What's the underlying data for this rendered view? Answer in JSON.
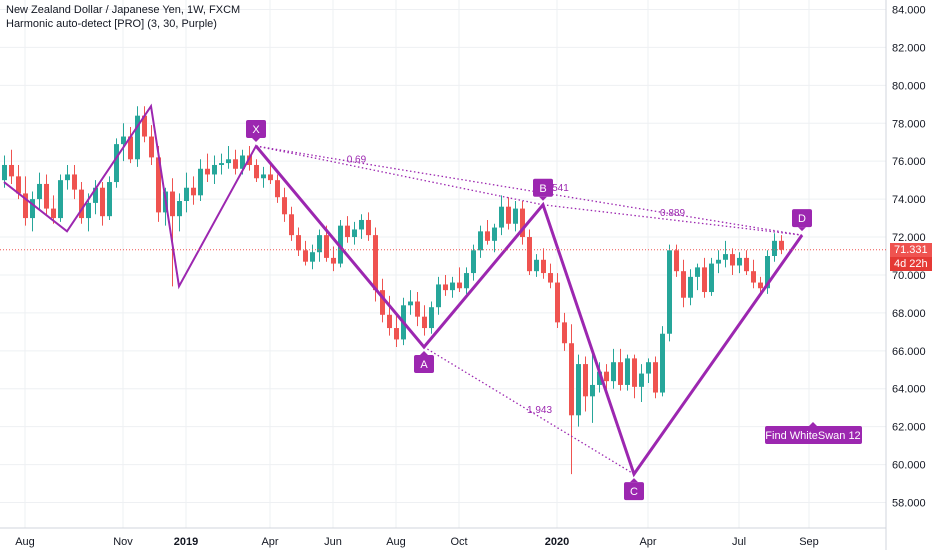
{
  "header": {
    "title": "New Zealand Dollar / Japanese Yen, 1W, FXCM",
    "indicator": "Harmonic auto-detect [PRO] (3, 30, Purple)"
  },
  "price_label": {
    "value": "71.331",
    "countdown": "4d 22h",
    "color": "#ef5350",
    "countdown_color": "#e53935"
  },
  "colors": {
    "up": "#26a69a",
    "down": "#ef5350",
    "pattern": "#9c27b0",
    "grid": "#eef0f3",
    "axis_text": "#131722"
  },
  "banner": {
    "label": "Find WhiteSwan 12"
  },
  "chart_data": {
    "type": "candlestick",
    "x_ticks": [
      "Aug",
      "Nov",
      "2019",
      "Apr",
      "Jun",
      "Aug",
      "Oct",
      "2020",
      "Apr",
      "Jul",
      "Sep"
    ],
    "y_ticks": [
      "84.000",
      "82.000",
      "80.000",
      "78.000",
      "76.000",
      "74.000",
      "72.000",
      "70.000",
      "68.000",
      "66.000",
      "64.000",
      "62.000",
      "60.000",
      "58.000"
    ],
    "ylim": [
      57.5,
      84.5
    ],
    "current_price": 71.331,
    "pattern_points": [
      {
        "label": "X",
        "price": 76.8
      },
      {
        "label": "A",
        "price": 66.2
      },
      {
        "label": "B",
        "price": 73.7
      },
      {
        "label": "C",
        "price": 59.5
      },
      {
        "label": "D",
        "price": 72.1
      }
    ],
    "ratios": [
      "0.69",
      "0.541",
      "0.889",
      "1.943"
    ],
    "zigzag": [
      74.9,
      72.3,
      78.9,
      69.4,
      76.8,
      66.2,
      73.7,
      59.5,
      72.1
    ],
    "ohlc": [
      [
        75.0,
        76.3,
        74.6,
        75.8
      ],
      [
        75.8,
        76.6,
        74.8,
        75.2
      ],
      [
        75.2,
        75.8,
        74.0,
        74.3
      ],
      [
        74.3,
        75.2,
        72.6,
        73.0
      ],
      [
        73.0,
        74.4,
        72.3,
        74.0
      ],
      [
        74.0,
        75.4,
        73.4,
        74.8
      ],
      [
        74.8,
        75.3,
        73.2,
        73.5
      ],
      [
        73.5,
        74.2,
        72.7,
        73.0
      ],
      [
        73.0,
        75.3,
        72.8,
        75.0
      ],
      [
        75.0,
        75.8,
        74.5,
        75.3
      ],
      [
        75.3,
        75.8,
        74.0,
        74.5
      ],
      [
        74.5,
        74.9,
        72.7,
        73.0
      ],
      [
        73.0,
        74.3,
        72.3,
        73.8
      ],
      [
        73.8,
        75.0,
        73.2,
        74.6
      ],
      [
        74.6,
        74.9,
        72.6,
        73.1
      ],
      [
        73.1,
        75.2,
        72.9,
        74.9
      ],
      [
        74.9,
        77.2,
        74.6,
        76.9
      ],
      [
        76.9,
        78.0,
        76.0,
        77.3
      ],
      [
        77.3,
        77.8,
        75.9,
        76.1
      ],
      [
        76.1,
        78.9,
        75.7,
        78.4
      ],
      [
        78.4,
        78.9,
        77.0,
        77.3
      ],
      [
        77.3,
        77.9,
        75.8,
        76.2
      ],
      [
        76.2,
        76.8,
        72.8,
        73.3
      ],
      [
        73.3,
        74.6,
        72.6,
        74.4
      ],
      [
        74.4,
        75.1,
        69.4,
        73.1
      ],
      [
        73.1,
        74.3,
        72.3,
        73.9
      ],
      [
        73.9,
        75.4,
        73.3,
        74.6
      ],
      [
        74.6,
        75.2,
        73.7,
        74.2
      ],
      [
        74.2,
        76.1,
        73.9,
        75.6
      ],
      [
        75.6,
        76.4,
        74.9,
        75.3
      ],
      [
        75.3,
        76.3,
        74.8,
        75.8
      ],
      [
        75.8,
        76.4,
        75.3,
        75.9
      ],
      [
        75.9,
        76.8,
        75.6,
        76.1
      ],
      [
        76.1,
        76.6,
        75.3,
        75.6
      ],
      [
        75.6,
        76.6,
        75.3,
        76.3
      ],
      [
        76.3,
        76.8,
        75.5,
        75.8
      ],
      [
        75.8,
        76.1,
        74.9,
        75.1
      ],
      [
        75.1,
        75.7,
        74.6,
        75.3
      ],
      [
        75.3,
        75.9,
        74.8,
        75.0
      ],
      [
        75.0,
        75.3,
        73.8,
        74.1
      ],
      [
        74.1,
        74.6,
        72.8,
        73.2
      ],
      [
        73.2,
        73.6,
        71.8,
        72.1
      ],
      [
        72.1,
        72.5,
        71.0,
        71.3
      ],
      [
        71.3,
        71.8,
        70.5,
        70.7
      ],
      [
        70.7,
        71.6,
        70.3,
        71.2
      ],
      [
        71.2,
        72.4,
        70.7,
        72.1
      ],
      [
        72.1,
        72.6,
        70.7,
        70.9
      ],
      [
        70.9,
        71.5,
        70.2,
        70.6
      ],
      [
        70.6,
        72.9,
        70.4,
        72.6
      ],
      [
        72.6,
        73.1,
        71.7,
        72.0
      ],
      [
        72.0,
        72.8,
        71.6,
        72.4
      ],
      [
        72.4,
        73.2,
        71.9,
        72.9
      ],
      [
        72.9,
        73.3,
        71.8,
        72.1
      ],
      [
        72.1,
        72.5,
        68.6,
        69.2
      ],
      [
        69.2,
        69.8,
        67.5,
        67.9
      ],
      [
        67.9,
        68.9,
        66.8,
        67.2
      ],
      [
        67.2,
        67.9,
        66.2,
        66.6
      ],
      [
        66.6,
        68.8,
        66.3,
        68.4
      ],
      [
        68.4,
        69.2,
        67.9,
        68.6
      ],
      [
        68.6,
        69.1,
        67.3,
        67.8
      ],
      [
        67.8,
        68.4,
        66.8,
        67.2
      ],
      [
        67.2,
        68.6,
        66.9,
        68.3
      ],
      [
        68.3,
        69.9,
        67.9,
        69.5
      ],
      [
        69.5,
        70.0,
        68.9,
        69.2
      ],
      [
        69.2,
        69.9,
        68.8,
        69.6
      ],
      [
        69.6,
        70.4,
        69.1,
        69.3
      ],
      [
        69.3,
        70.4,
        69.0,
        70.1
      ],
      [
        70.1,
        71.6,
        69.7,
        71.3
      ],
      [
        71.3,
        72.6,
        70.9,
        72.3
      ],
      [
        72.3,
        72.9,
        71.6,
        71.8
      ],
      [
        71.8,
        72.7,
        71.2,
        72.5
      ],
      [
        72.5,
        74.2,
        72.1,
        73.6
      ],
      [
        73.6,
        74.1,
        72.4,
        72.7
      ],
      [
        72.7,
        73.9,
        72.3,
        73.5
      ],
      [
        73.5,
        73.9,
        71.6,
        72.0
      ],
      [
        72.0,
        72.4,
        70.0,
        70.2
      ],
      [
        70.2,
        71.1,
        69.9,
        70.8
      ],
      [
        70.8,
        71.4,
        69.8,
        70.1
      ],
      [
        70.1,
        70.6,
        69.3,
        69.6
      ],
      [
        69.6,
        70.1,
        67.2,
        67.5
      ],
      [
        67.5,
        68.0,
        66.0,
        66.4
      ],
      [
        66.4,
        67.4,
        59.5,
        62.6
      ],
      [
        62.6,
        65.8,
        62.0,
        65.3
      ],
      [
        65.3,
        65.7,
        62.8,
        63.6
      ],
      [
        63.6,
        65.9,
        62.2,
        64.2
      ],
      [
        64.2,
        65.4,
        63.8,
        64.9
      ],
      [
        64.9,
        65.3,
        63.9,
        64.4
      ],
      [
        64.4,
        66.1,
        64.0,
        65.4
      ],
      [
        65.4,
        66.1,
        63.9,
        64.2
      ],
      [
        64.2,
        65.8,
        63.9,
        65.6
      ],
      [
        65.6,
        65.8,
        63.5,
        64.1
      ],
      [
        64.1,
        65.3,
        63.3,
        64.8
      ],
      [
        64.8,
        65.6,
        64.3,
        65.4
      ],
      [
        65.4,
        65.7,
        63.5,
        63.8
      ],
      [
        63.8,
        67.3,
        63.6,
        66.9
      ],
      [
        66.9,
        71.6,
        66.5,
        71.3
      ],
      [
        71.3,
        71.6,
        69.9,
        70.2
      ],
      [
        70.2,
        70.8,
        68.3,
        68.8
      ],
      [
        68.8,
        70.3,
        68.4,
        69.9
      ],
      [
        69.9,
        70.6,
        69.2,
        70.4
      ],
      [
        70.4,
        70.9,
        68.8,
        69.1
      ],
      [
        69.1,
        70.9,
        68.9,
        70.6
      ],
      [
        70.6,
        71.3,
        70.1,
        70.8
      ],
      [
        70.8,
        71.8,
        70.4,
        71.1
      ],
      [
        71.1,
        71.4,
        70.0,
        70.5
      ],
      [
        70.5,
        71.2,
        70.1,
        70.9
      ],
      [
        70.9,
        71.3,
        70.0,
        70.2
      ],
      [
        70.2,
        70.8,
        69.3,
        69.6
      ],
      [
        69.6,
        69.9,
        68.9,
        69.3
      ],
      [
        69.3,
        71.3,
        69.0,
        71.0
      ],
      [
        71.0,
        72.2,
        70.7,
        71.8
      ],
      [
        71.8,
        72.1,
        71.1,
        71.33
      ]
    ]
  }
}
